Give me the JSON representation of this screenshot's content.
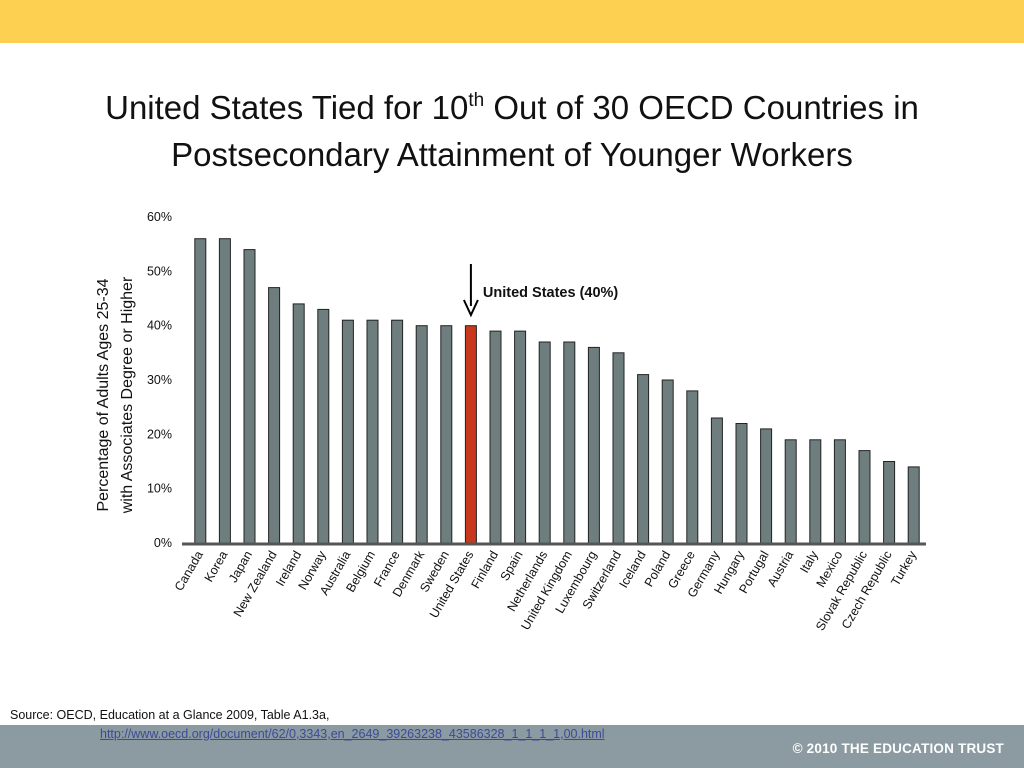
{
  "slide": {
    "title_line1_pre": "United States Tied for 10",
    "title_sup": "th",
    "title_line1_post": " Out of 30 OECD Countries in",
    "title_line2": "Postsecondary Attainment of Younger Workers",
    "source_label": "Source: OECD, Education at a Glance 2009, Table A1.3a,",
    "source_url": "http://www.oecd.org/document/62/0,3343,en_2649_39263238_43586328_1_1_1_1,00.html",
    "copyright": "© 2010 THE EDUCATION TRUST"
  },
  "colors": {
    "top_band": "#fdd051",
    "bottom_band": "#8c9ba1",
    "bar": "#6e7e7e",
    "highlight_bar": "#c8381d"
  },
  "chart_data": {
    "type": "bar",
    "ylabel_line1": "Percentage of Adults Ages 25-34",
    "ylabel_line2": "with Associates Degree or Higher",
    "ylim": [
      0,
      60
    ],
    "yticks": [
      "0%",
      "10%",
      "20%",
      "30%",
      "40%",
      "50%",
      "60%"
    ],
    "categories": [
      "Canada",
      "Korea",
      "Japan",
      "New Zealand",
      "Ireland",
      "Norway",
      "Australia",
      "Belgium",
      "France",
      "Denmark",
      "Sweden",
      "United States",
      "Finland",
      "Spain",
      "Netherlands",
      "United Kingdom",
      "Luxembourg",
      "Switzerland",
      "Iceland",
      "Poland",
      "Greece",
      "Germany",
      "Hungary",
      "Portugal",
      "Austria",
      "Italy",
      "Mexico",
      "Slovak Republic",
      "Czech Republic",
      "Turkey"
    ],
    "values": [
      56,
      56,
      54,
      47,
      44,
      43,
      41,
      41,
      41,
      40,
      40,
      40,
      39,
      39,
      37,
      37,
      36,
      35,
      31,
      30,
      28,
      23,
      22,
      21,
      19,
      19,
      19,
      17,
      15,
      14
    ],
    "highlight_index": 11,
    "annotation": "United States (40%)",
    "grid": false,
    "legend": "none"
  }
}
